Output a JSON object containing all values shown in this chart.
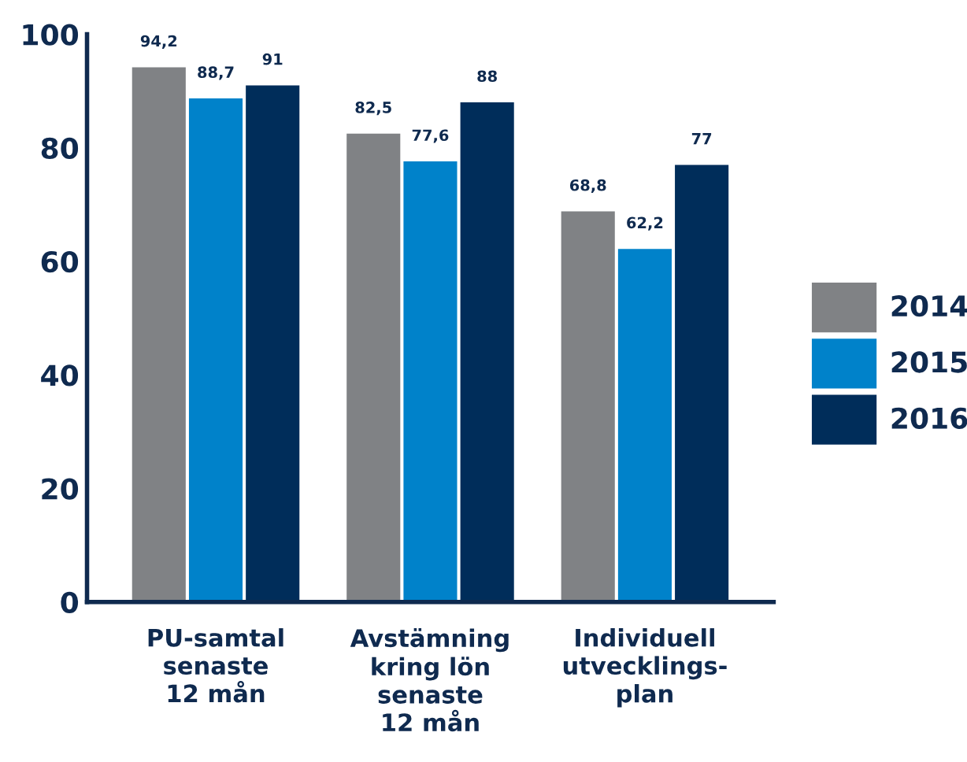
{
  "chart_data": {
    "type": "bar",
    "categories": [
      "PU-samtal\nsenaste\n12 mån",
      "Avstämning\nkring lön\nsenaste\n12 mån",
      "Individuell\nutvecklings-\nplan"
    ],
    "series": [
      {
        "name": "2014",
        "color": "#808285",
        "values": [
          94.2,
          82.5,
          68.8
        ],
        "value_labels": [
          "94,2",
          "82,5",
          "68,8"
        ]
      },
      {
        "name": "2015",
        "color": "#0082ca",
        "values": [
          88.7,
          77.6,
          62.2
        ],
        "value_labels": [
          "88,7",
          "77,6",
          "62,2"
        ]
      },
      {
        "name": "2016",
        "color": "#002d5a",
        "values": [
          91,
          88,
          77
        ],
        "value_labels": [
          "91",
          "88",
          "77"
        ]
      }
    ],
    "ylim": [
      0,
      100
    ],
    "yticks": [
      0,
      20,
      40,
      60,
      80,
      100
    ],
    "grid": false,
    "legend": "right"
  }
}
